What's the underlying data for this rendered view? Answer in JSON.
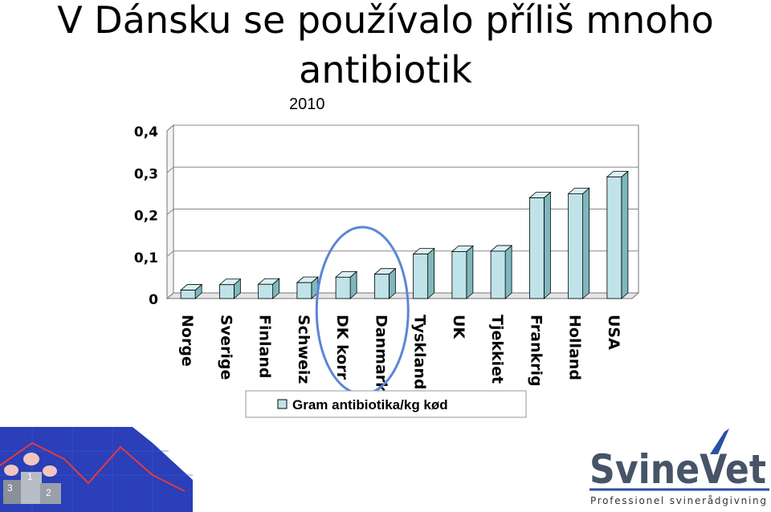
{
  "slide": {
    "title_line1": "V Dánsku se používalo příliš mnoho",
    "title_line2": "antibiotik"
  },
  "chart_data": {
    "type": "bar",
    "title": "2010",
    "categories": [
      "Norge",
      "Sverige",
      "Finland",
      "Schweiz",
      "DK korr",
      "Danmark",
      "Tyskland",
      "UK",
      "Tjekkiet",
      "Frankrig",
      "Holland",
      "USA"
    ],
    "series": [
      {
        "name": "Gram antibiotika/kg kød",
        "values": [
          0.02,
          0.033,
          0.034,
          0.038,
          0.051,
          0.058,
          0.106,
          0.112,
          0.113,
          0.24,
          0.25,
          0.29
        ]
      }
    ],
    "ylim": [
      0,
      0.4
    ],
    "yticks": [
      "0",
      "0,1",
      "0,2",
      "0,3",
      "0,4"
    ],
    "grid": true,
    "legend_position": "bottom",
    "highlight": "DK korr, Danmark",
    "colors": {
      "bar": "#bfe3e8",
      "bar_side": "#7fb7be",
      "highlight": "#5b86d6"
    }
  },
  "logo": {
    "brand": "SvineVet",
    "tagline": "Professionel svinerådgivning",
    "colors": {
      "dark": "#475467",
      "blue": "#2b4fa3"
    }
  },
  "decor": {
    "podium_labels": [
      "3",
      "1",
      "2"
    ]
  }
}
